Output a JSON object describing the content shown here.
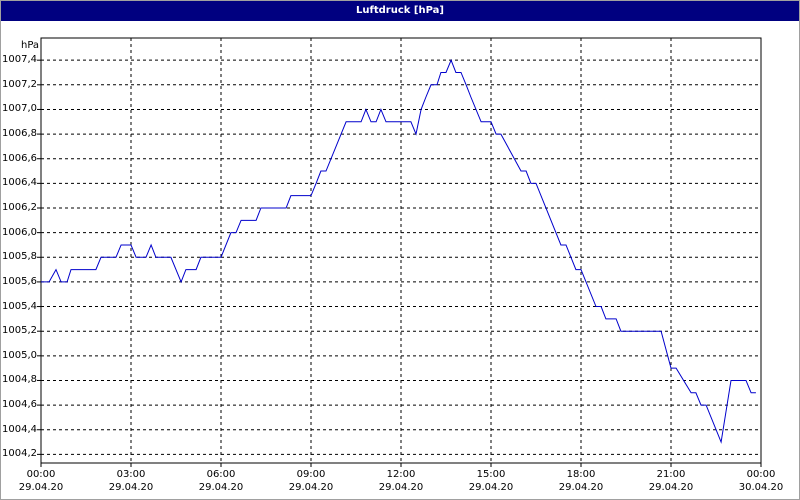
{
  "chart_data": {
    "type": "line",
    "title": "Luftdruck [hPa]",
    "y_label": "hPa",
    "color": "#0000cc",
    "grid": true,
    "xlim": [
      0,
      24
    ],
    "ylim": [
      1004.13,
      1007.58
    ],
    "xticks": [
      {
        "value": 0,
        "label": "00:00\n29.04.20"
      },
      {
        "value": 3,
        "label": "03:00\n29.04.20"
      },
      {
        "value": 6,
        "label": "06:00\n29.04.20"
      },
      {
        "value": 9,
        "label": "09:00\n29.04.20"
      },
      {
        "value": 12,
        "label": "12:00\n29.04.20"
      },
      {
        "value": 15,
        "label": "15:00\n29.04.20"
      },
      {
        "value": 18,
        "label": "18:00\n29.04.20"
      },
      {
        "value": 21,
        "label": "21:00\n29.04.20"
      },
      {
        "value": 24,
        "label": "00:00\n30.04.20"
      }
    ],
    "yticks": [
      {
        "value": 1004.2,
        "label": "1004,2"
      },
      {
        "value": 1004.4,
        "label": "1004,4"
      },
      {
        "value": 1004.6,
        "label": "1004,6"
      },
      {
        "value": 1004.8,
        "label": "1004,8"
      },
      {
        "value": 1005.0,
        "label": "1005,0"
      },
      {
        "value": 1005.2,
        "label": "1005,2"
      },
      {
        "value": 1005.4,
        "label": "1005,4"
      },
      {
        "value": 1005.6,
        "label": "1005,6"
      },
      {
        "value": 1005.8,
        "label": "1005,8"
      },
      {
        "value": 1006.0,
        "label": "1006,0"
      },
      {
        "value": 1006.2,
        "label": "1006,2"
      },
      {
        "value": 1006.4,
        "label": "1006,4"
      },
      {
        "value": 1006.6,
        "label": "1006,6"
      },
      {
        "value": 1006.8,
        "label": "1006,8"
      },
      {
        "value": 1007.0,
        "label": "1007,0"
      },
      {
        "value": 1007.2,
        "label": "1007,2"
      },
      {
        "value": 1007.4,
        "label": "1007,4"
      }
    ],
    "x": [
      0,
      0.27,
      0.5,
      0.67,
      0.87,
      1,
      1.83,
      2,
      2.5,
      2.67,
      3,
      3.17,
      3.5,
      3.67,
      3.83,
      4.33,
      4.67,
      4.83,
      5.17,
      5.33,
      6,
      6.33,
      6.5,
      6.67,
      7.17,
      7.33,
      8.17,
      8.33,
      9,
      9.17,
      9.33,
      9.5,
      10.17,
      10.67,
      10.83,
      11,
      11.17,
      11.33,
      11.5,
      12.33,
      12.5,
      12.67,
      12.83,
      13,
      13.2,
      13.33,
      13.5,
      13.67,
      13.83,
      14,
      14.17,
      14.33,
      14.67,
      15,
      15.17,
      15.33,
      16,
      16.17,
      16.33,
      16.5,
      17.33,
      17.5,
      17.83,
      18,
      18.5,
      18.67,
      18.83,
      19.17,
      19.33,
      20.67,
      21,
      21.17,
      21.67,
      21.83,
      22,
      22.17,
      22.67,
      23,
      23.5,
      23.67,
      23.83
    ],
    "values": [
      1005.6,
      1005.6,
      1005.7,
      1005.6,
      1005.6,
      1005.7,
      1005.7,
      1005.8,
      1005.8,
      1005.9,
      1005.9,
      1005.8,
      1005.8,
      1005.9,
      1005.8,
      1005.8,
      1005.6,
      1005.7,
      1005.7,
      1005.8,
      1005.8,
      1006.0,
      1006.0,
      1006.1,
      1006.1,
      1006.2,
      1006.2,
      1006.3,
      1006.3,
      1006.4,
      1006.5,
      1006.5,
      1006.9,
      1006.9,
      1007.0,
      1006.9,
      1006.9,
      1007.0,
      1006.9,
      1006.9,
      1006.8,
      1007.0,
      1007.1,
      1007.2,
      1007.2,
      1007.3,
      1007.3,
      1007.4,
      1007.3,
      1007.3,
      1007.2,
      1007.1,
      1006.9,
      1006.9,
      1006.8,
      1006.8,
      1006.5,
      1006.5,
      1006.4,
      1006.4,
      1005.9,
      1005.9,
      1005.7,
      1005.7,
      1005.4,
      1005.4,
      1005.3,
      1005.3,
      1005.2,
      1005.2,
      1004.9,
      1004.9,
      1004.7,
      1004.7,
      1004.6,
      1004.6,
      1004.3,
      1004.8,
      1004.8,
      1004.7,
      1004.7
    ]
  }
}
